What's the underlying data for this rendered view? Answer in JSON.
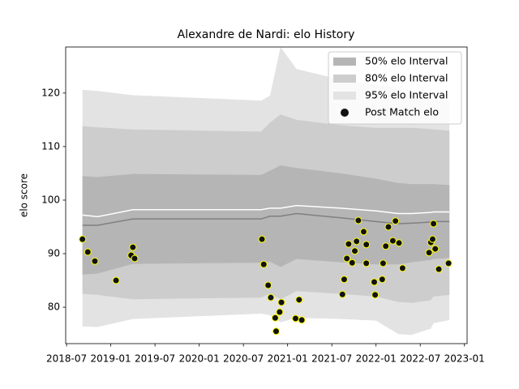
{
  "chart_data": {
    "type": "interval",
    "title": "Alexandre de Nardi: elo History",
    "y_label": "elo score",
    "band_x": [
      2018.68,
      2018.85,
      2019.25,
      2020.7,
      2020.8,
      2020.92,
      2021.1,
      2021.6,
      2022.0,
      2022.25,
      2022.4,
      2022.62,
      2022.65,
      2022.83
    ],
    "bands": [
      {
        "name": "50% elo Interval",
        "color": "#b5b5b5",
        "upper": [
          104.5,
          104.3,
          104.9,
          104.7,
          105.5,
          106.5,
          106.0,
          105.0,
          104.0,
          103.2,
          103.0,
          103.0,
          103.0,
          102.8
        ],
        "lower": [
          86.1,
          86.3,
          88.1,
          88.3,
          88.5,
          87.5,
          89.0,
          88.4,
          88.0,
          88.0,
          88.4,
          88.8,
          89.0,
          89.2
        ]
      },
      {
        "name": "80% elo Interval",
        "color": "#cdcdcd",
        "upper": [
          113.8,
          113.6,
          113.2,
          112.8,
          114.5,
          116.0,
          115.0,
          114.0,
          113.5,
          113.5,
          113.5,
          113.3,
          113.2,
          113.0
        ],
        "lower": [
          82.5,
          82.3,
          81.5,
          81.8,
          82.5,
          81.5,
          83.0,
          82.5,
          82.0,
          81.0,
          80.8,
          81.3,
          82.0,
          82.3
        ]
      },
      {
        "name": "95% elo Interval",
        "color": "#e3e3e3",
        "upper": [
          120.6,
          120.4,
          119.6,
          118.6,
          119.5,
          128.6,
          124.5,
          122.5,
          121.5,
          121.0,
          119.6,
          119.3,
          119.0,
          118.5
        ],
        "lower": [
          76.4,
          76.3,
          77.8,
          78.8,
          78.5,
          77.2,
          78.0,
          77.8,
          77.5,
          75.0,
          74.8,
          76.0,
          77.0,
          77.6
        ]
      }
    ],
    "lines": [
      {
        "color": "#808080",
        "values": [
          95.3,
          95.3,
          96.5,
          96.5,
          97.0,
          97.0,
          97.5,
          96.7,
          96.0,
          95.6,
          95.7,
          95.9,
          96.0,
          96.0
        ]
      },
      {
        "color": "#ffffff",
        "values": [
          97.2,
          96.9,
          98.2,
          98.2,
          98.5,
          98.5,
          99.0,
          98.5,
          98.0,
          97.5,
          97.5,
          97.7,
          97.8,
          97.8
        ]
      }
    ],
    "series": [
      {
        "name": "Post Match elo",
        "color": "#111111",
        "edgecolor": "#ffff00",
        "x": [
          2018.68,
          2018.74,
          2018.82,
          2019.06,
          2019.25,
          2019.23,
          2019.27,
          2020.71,
          2020.73,
          2020.78,
          2020.81,
          2020.86,
          2020.91,
          2020.87,
          2020.93,
          2021.09,
          2021.13,
          2021.16,
          2021.62,
          2021.64,
          2021.67,
          2021.69,
          2021.73,
          2021.76,
          2021.78,
          2021.8,
          2021.86,
          2021.89,
          2021.89,
          2021.98,
          2021.99,
          2022.07,
          2022.08,
          2022.11,
          2022.14,
          2022.19,
          2022.22,
          2022.26,
          2022.3,
          2022.6,
          2022.62,
          2022.64,
          2022.65,
          2022.67,
          2022.71,
          2022.82
        ],
        "values": [
          92.7,
          90.3,
          88.6,
          85.0,
          91.2,
          89.7,
          89.1,
          92.7,
          88.0,
          84.1,
          81.8,
          78.0,
          79.1,
          75.5,
          80.9,
          77.9,
          81.4,
          77.6,
          82.4,
          85.2,
          89.1,
          91.8,
          88.3,
          90.5,
          92.3,
          96.2,
          94.1,
          91.7,
          88.2,
          84.7,
          82.3,
          85.2,
          88.2,
          91.4,
          95.0,
          92.4,
          96.1,
          92.0,
          87.3,
          90.2,
          92.1,
          92.7,
          95.6,
          90.9,
          87.1,
          88.2
        ]
      }
    ],
    "xlim": [
      2018.49,
      2023.03
    ],
    "xticks": [
      {
        "value": 2018.5,
        "label": "2018-07"
      },
      {
        "value": 2019.0,
        "label": "2019-01"
      },
      {
        "value": 2019.5,
        "label": "2019-07"
      },
      {
        "value": 2020.0,
        "label": "2020-01"
      },
      {
        "value": 2020.5,
        "label": "2020-07"
      },
      {
        "value": 2021.0,
        "label": "2021-01"
      },
      {
        "value": 2021.5,
        "label": "2021-07"
      },
      {
        "value": 2022.0,
        "label": "2022-01"
      },
      {
        "value": 2022.5,
        "label": "2022-07"
      },
      {
        "value": 2023.0,
        "label": "2023-01"
      }
    ],
    "ylim": [
      73.2,
      128.6
    ],
    "yticks": [
      80,
      90,
      100,
      110,
      120
    ],
    "legend": "upper right"
  }
}
